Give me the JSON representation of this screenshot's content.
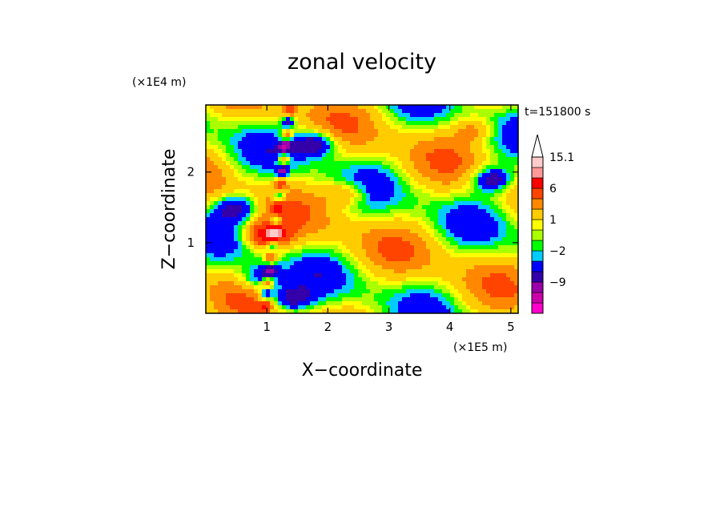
{
  "chart_data": {
    "type": "heatmap",
    "title": "zonal velocity",
    "xlabel": "X−coordinate",
    "ylabel": "Z−coordinate",
    "x_unit": "(×1E5 m)",
    "y_unit": "(×1E4 m)",
    "time_label": "t=151800 s",
    "xlim": [
      0,
      5.12
    ],
    "ylim": [
      0,
      2.95
    ],
    "x_ticks": [
      1,
      2,
      3,
      4,
      5
    ],
    "y_ticks": [
      1,
      2
    ],
    "colorbar": {
      "levels": [
        -15,
        -12,
        -9,
        -6,
        -4,
        -2,
        -1,
        0,
        1,
        2,
        4,
        6,
        9,
        12,
        15.1
      ],
      "colors": [
        "#ff00cc",
        "#cc00aa",
        "#9900aa",
        "#3300aa",
        "#0000ff",
        "#00ccff",
        "#00ff00",
        "#aaff00",
        "#ffff00",
        "#ffcc00",
        "#ff8800",
        "#ff4400",
        "#ff0000",
        "#ff9999",
        "#ffcccc"
      ],
      "tick_labels": [
        "15.1",
        "6",
        "1",
        "−2",
        "−9"
      ],
      "tick_values": [
        15.1,
        6,
        1,
        -2,
        -9
      ],
      "extend": "max"
    },
    "features": [
      {
        "x": 1.8,
        "z": 2.4,
        "u": -8
      },
      {
        "x": 0.5,
        "z": 1.5,
        "u": -7
      },
      {
        "x": 1.0,
        "z": 1.1,
        "u": 10
      },
      {
        "x": 0.9,
        "z": 0.5,
        "u": -6
      },
      {
        "x": 4.7,
        "z": 1.9,
        "u": -8
      },
      {
        "x": 2.3,
        "z": 1.7,
        "u": 5
      },
      {
        "x": 4.4,
        "z": 2.6,
        "u": 4
      },
      {
        "x": 1.4,
        "z": 0.2,
        "u": -7
      }
    ]
  }
}
